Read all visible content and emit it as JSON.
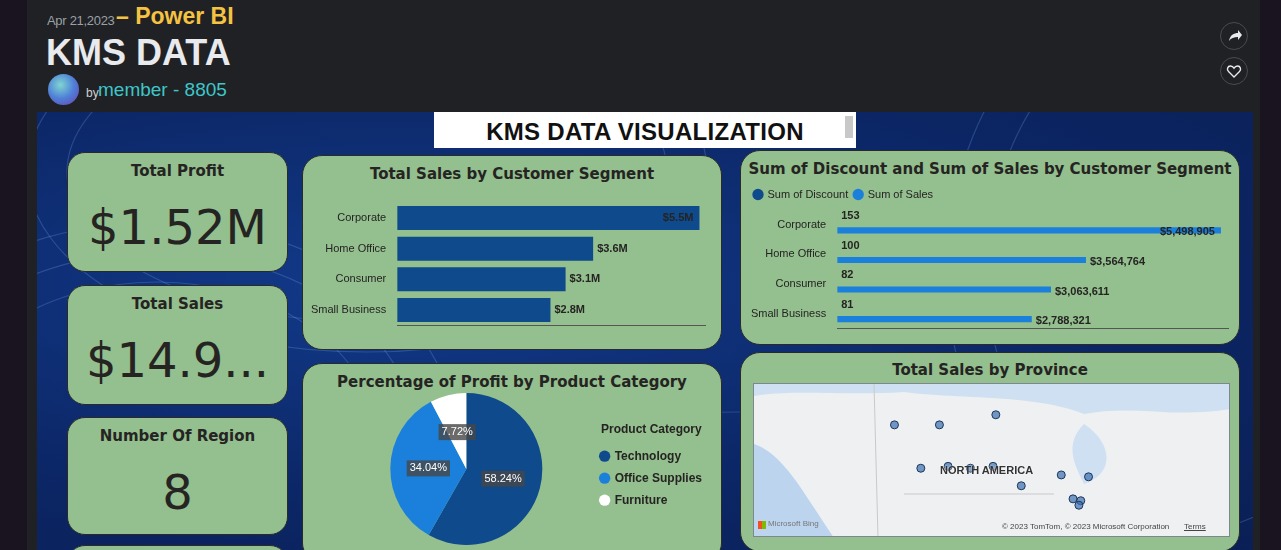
{
  "header": {
    "date": "Apr 21,2023",
    "app": "– Power BI",
    "title": "KMS DATA",
    "by": "by",
    "author": "member - 8805"
  },
  "dashboard": {
    "title": "KMS DATA VISUALIZATION",
    "cards": [
      {
        "title": "Total Profit",
        "value": "$1.52M"
      },
      {
        "title": "Total Sales",
        "value": "$14.9..."
      },
      {
        "title": "Number Of Region",
        "value": "8"
      }
    ]
  },
  "chart_data": [
    {
      "type": "bar",
      "title": "Total Sales by Customer Segment",
      "orientation": "horizontal",
      "categories": [
        "Corporate",
        "Home Office",
        "Consumer",
        "Small Business"
      ],
      "values": [
        5498905,
        3564764,
        3063611,
        2788321
      ],
      "value_labels": [
        "$5.5M",
        "$3.6M",
        "$3.1M",
        "$2.8M"
      ],
      "color": "#0f4a8c",
      "xlim": [
        0,
        5600000
      ],
      "grid": false,
      "tick_labels": "y",
      "data_labels": true
    },
    {
      "type": "bar",
      "title": "Sum of Discount and Sum of Sales by Customer Segment",
      "orientation": "horizontal",
      "categories": [
        "Corporate",
        "Home Office",
        "Consumer",
        "Small Business"
      ],
      "series": [
        {
          "name": "Sum of Discount",
          "color": "#0f4a8c",
          "values": [
            153,
            100,
            82,
            81
          ]
        },
        {
          "name": "Sum of Sales",
          "color": "#1a80dc",
          "values": [
            5498905,
            3564764,
            3063611,
            2788321
          ],
          "value_labels": [
            "$5,498,905",
            "$3,564,764",
            "$3,063,611",
            "$2,788,321"
          ]
        }
      ],
      "xlim": [
        0,
        5600000
      ],
      "grid": false,
      "tick_labels": "y",
      "legend": "top-left",
      "data_labels": true
    },
    {
      "type": "pie",
      "title": "Percentage of Profit by Product Category",
      "legend_title": "Product Category",
      "categories": [
        "Technology",
        "Office Supplies",
        "Furniture"
      ],
      "values": [
        58.24,
        34.04,
        7.72
      ],
      "value_labels": [
        "58.24%",
        "34.04%",
        "7.72%"
      ],
      "colors": [
        "#0f4a8c",
        "#1a80dc",
        "#ffffff"
      ],
      "legend": "right",
      "data_labels": true
    },
    {
      "type": "scatter",
      "title": "Total Sales by Province",
      "x": [
        -126.3,
        -111.8,
        -93.6,
        -117.8,
        -109.0,
        -101.8,
        -94.5,
        -85.4,
        -72.5,
        -63.7,
        -68.7,
        -66.2,
        -66.8
      ],
      "values": [
        68.4,
        68.4,
        71.1,
        56.8,
        57.3,
        56.8,
        57.3,
        52.1,
        55.0,
        54.5,
        48.6,
        48.1,
        46.9
      ],
      "xlim": [
        -170,
        -20
      ],
      "ylim": [
        40,
        78
      ],
      "color": "#3a6fb0",
      "grid": false,
      "tick_labels": false,
      "annotations": [
        "NORTH AMERICA",
        "Microsoft Bing",
        "© 2023 TomTom, © 2023 Microsoft Corporation",
        "Terms"
      ]
    }
  ]
}
